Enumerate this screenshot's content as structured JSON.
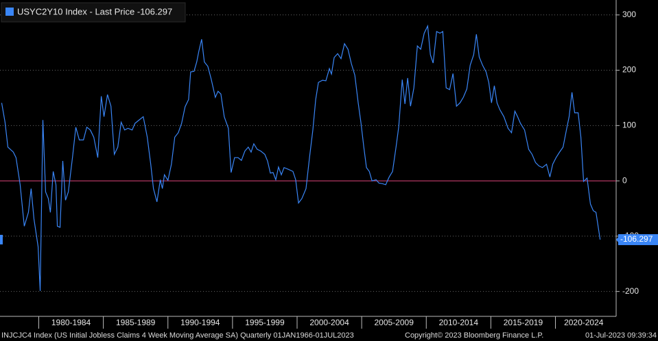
{
  "chart_data": {
    "type": "line",
    "xlim": [
      1977,
      2024.7
    ],
    "ylim": [
      -245,
      327
    ],
    "yticks": [
      300,
      200,
      100,
      0,
      -100,
      -200
    ],
    "xticks": [
      {
        "value": 1980,
        "label": "1980-1984"
      },
      {
        "value": 1985,
        "label": "1985-1989"
      },
      {
        "value": 1990,
        "label": "1990-1994"
      },
      {
        "value": 1995,
        "label": "1995-1999"
      },
      {
        "value": 2000,
        "label": "2000-2004"
      },
      {
        "value": 2005,
        "label": "2005-2009"
      },
      {
        "value": 2010,
        "label": "2010-2014"
      },
      {
        "value": 2015,
        "label": "2015-2019"
      },
      {
        "value": 2020,
        "label": "2020-2024"
      }
    ],
    "grid": true,
    "reference_line": {
      "value": 0,
      "color": "#e0457b"
    },
    "footnote_left": "INJCJC4 Index (US Initial Jobless Claims 4 Week Moving Average SA)  Quarterly 01JAN1966-01JUL2023",
    "footnote_center": "Copyright© 2023 Bloomberg Finance L.P.",
    "footnote_right": "01-Jul-2023 09:39:34",
    "series": [
      {
        "name": "USYC2Y10 Index - Last Price -106.297",
        "color": "#3a86f7",
        "x": [
          1977.13,
          1977.39,
          1977.61,
          1978.03,
          1978.24,
          1978.56,
          1978.88,
          1979.2,
          1979.41,
          1979.63,
          1979.95,
          1980.11,
          1980.32,
          1980.53,
          1980.74,
          1980.9,
          1981.12,
          1981.33,
          1981.44,
          1981.65,
          1981.86,
          1982.07,
          1982.29,
          1982.61,
          1982.87,
          1983.14,
          1983.46,
          1983.72,
          1983.99,
          1984.26,
          1984.57,
          1984.84,
          1985.05,
          1985.32,
          1985.59,
          1985.85,
          1986.12,
          1986.38,
          1986.65,
          1986.91,
          1987.23,
          1987.45,
          1987.77,
          1988.09,
          1988.4,
          1988.67,
          1988.88,
          1989.15,
          1989.41,
          1989.57,
          1989.73,
          1990.0,
          1990.27,
          1990.53,
          1990.8,
          1991.06,
          1991.33,
          1991.6,
          1991.76,
          1992.02,
          1992.23,
          1992.39,
          1992.61,
          1992.82,
          1993.09,
          1993.35,
          1993.67,
          1993.88,
          1994.1,
          1994.36,
          1994.68,
          1994.89,
          1995.16,
          1995.43,
          1995.69,
          1995.96,
          1996.22,
          1996.44,
          1996.65,
          1996.91,
          1997.18,
          1997.5,
          1997.71,
          1997.93,
          1998.14,
          1998.35,
          1998.56,
          1998.78,
          1998.99,
          1999.31,
          1999.68,
          1999.89,
          2000.11,
          2000.37,
          2000.69,
          2000.96,
          2001.22,
          2001.44,
          2001.65,
          2001.97,
          2002.23,
          2002.5,
          2002.66,
          2002.87,
          2003.14,
          2003.4,
          2003.67,
          2003.94,
          2004.2,
          2004.47,
          2004.73,
          2004.95,
          2005.16,
          2005.37,
          2005.59,
          2005.8,
          2006.12,
          2006.33,
          2006.6,
          2006.86,
          2007.13,
          2007.39,
          2007.66,
          2007.87,
          2008.14,
          2008.35,
          2008.56,
          2008.78,
          2009.04,
          2009.31,
          2009.57,
          2009.84,
          2010.11,
          2010.32,
          2010.53,
          2010.8,
          2011.06,
          2011.28,
          2011.54,
          2011.81,
          2012.07,
          2012.34,
          2012.61,
          2012.87,
          2013.14,
          2013.4,
          2013.67,
          2013.88,
          2014.1,
          2014.36,
          2014.63,
          2014.84,
          2015.05,
          2015.27,
          2015.48,
          2015.69,
          2016.01,
          2016.33,
          2016.6,
          2016.86,
          2017.07,
          2017.29,
          2017.61,
          2017.93,
          2018.19,
          2018.46,
          2018.72,
          2018.99,
          2019.31,
          2019.57,
          2019.79,
          2020.05,
          2020.32,
          2020.59,
          2020.85,
          2021.06,
          2021.28,
          2021.49,
          2021.76,
          2021.97,
          2022.18,
          2022.45,
          2022.71,
          2022.93,
          2023.14,
          2023.46
        ],
        "values": [
          141,
          106,
          61,
          52,
          42,
          -7,
          -82,
          -57,
          -14,
          -69,
          -119,
          -199,
          110,
          -20,
          -32,
          -57,
          17,
          -7,
          -82,
          -84,
          36,
          -35,
          -20,
          42,
          97,
          74,
          74,
          97,
          92,
          79,
          42,
          153,
          116,
          156,
          135,
          48,
          61,
          106,
          92,
          95,
          92,
          104,
          110,
          116,
          79,
          30,
          -14,
          -38,
          2,
          -14,
          11,
          1,
          30,
          79,
          87,
          104,
          134,
          147,
          197,
          198,
          215,
          234,
          256,
          215,
          207,
          184,
          151,
          162,
          157,
          116,
          95,
          15,
          42,
          42,
          37,
          54,
          61,
          52,
          67,
          57,
          54,
          48,
          36,
          14,
          15,
          2,
          25,
          11,
          24,
          21,
          17,
          2,
          -40,
          -32,
          -14,
          42,
          92,
          147,
          178,
          182,
          181,
          203,
          193,
          223,
          230,
          221,
          248,
          238,
          212,
          191,
          141,
          104,
          62,
          24,
          17,
          0,
          2,
          -4,
          -5,
          -7,
          7,
          17,
          61,
          98,
          183,
          139,
          186,
          135,
          168,
          244,
          238,
          267,
          280,
          228,
          213,
          270,
          267,
          270,
          168,
          165,
          194,
          135,
          141,
          151,
          166,
          209,
          228,
          265,
          224,
          209,
          197,
          178,
          141,
          172,
          141,
          129,
          116,
          95,
          87,
          126,
          116,
          104,
          92,
          57,
          48,
          33,
          27,
          24,
          30,
          7,
          30,
          42,
          52,
          61,
          92,
          116,
          160,
          123,
          123,
          79,
          -1,
          5,
          -42,
          -54,
          -57,
          -106.297
        ]
      }
    ]
  }
}
